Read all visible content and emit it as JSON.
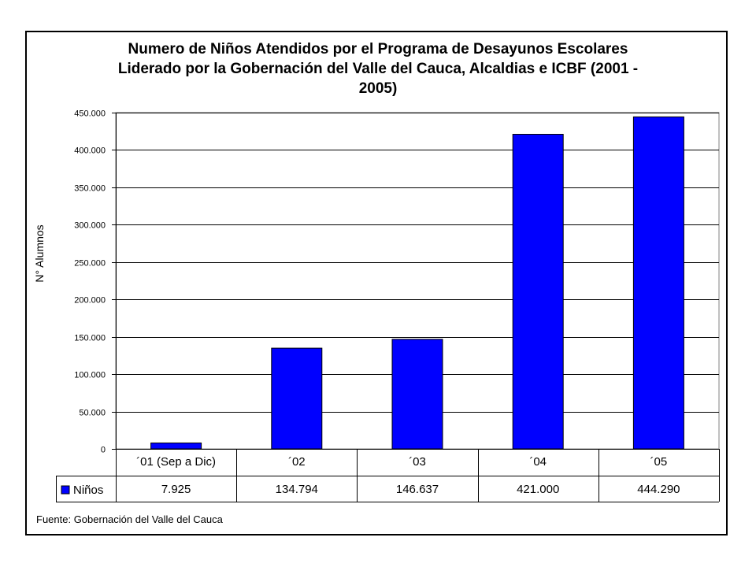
{
  "chart_data": {
    "type": "bar",
    "title_lines": [
      "Numero de Niños Atendidos por el Programa de Desayunos Escolares",
      "Liderado por la Gobernación del Valle del Cauca, Alcaldias e ICBF (2001 -",
      "2005)"
    ],
    "ylabel": "N° Alumnos",
    "xlabel": "",
    "categories": [
      "´01 (Sep a Dic)",
      "´02",
      "´03",
      "´04",
      "´05"
    ],
    "series": [
      {
        "name": "Niños",
        "values": [
          7925,
          134794,
          146637,
          421000,
          444290
        ],
        "value_labels": [
          "7.925",
          "134.794",
          "146.637",
          "421.000",
          "444.290"
        ],
        "color": "#0000ff"
      }
    ],
    "ylim": [
      0,
      450000
    ],
    "yticks": [
      0,
      50000,
      100000,
      150000,
      200000,
      250000,
      300000,
      350000,
      400000,
      450000
    ],
    "ytick_labels": [
      "0",
      "50.000",
      "100.000",
      "150.000",
      "200.000",
      "250.000",
      "300.000",
      "350.000",
      "400.000",
      "450.000"
    ],
    "grid": true,
    "data_table": true,
    "plot_background": "#ffffff"
  },
  "source_note": "Fuente: Gobernación del Valle del Cauca"
}
